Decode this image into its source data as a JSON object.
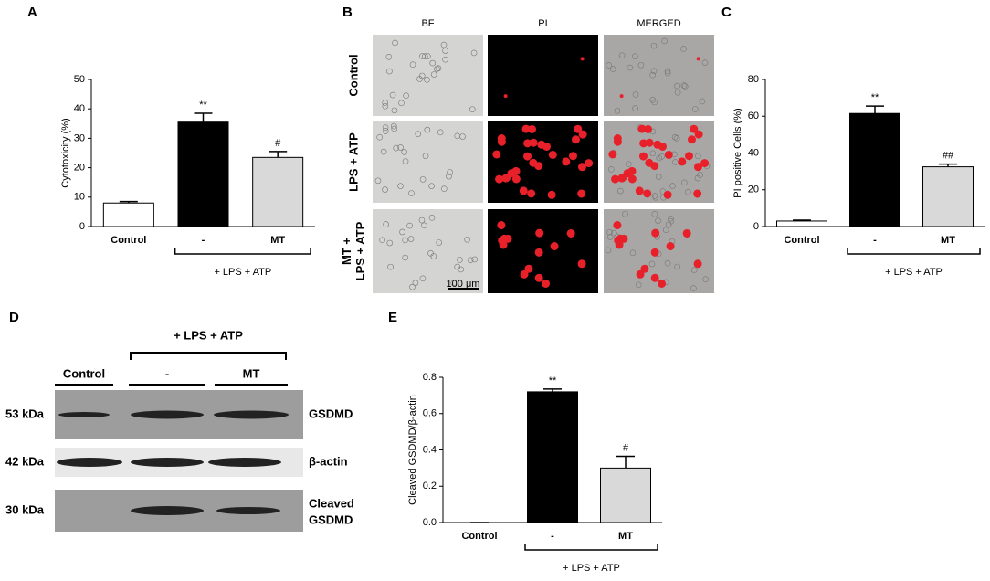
{
  "chart_data": [
    {
      "type": "bar",
      "panel": "A",
      "y_label": "Cytotoxicity (%)",
      "categories": [
        "Control",
        "-",
        "MT"
      ],
      "values": [
        8,
        35.5,
        23.5
      ],
      "errors": [
        0.5,
        3,
        2
      ],
      "colors": [
        "#ffffff",
        "#000000",
        "#d9d9d9"
      ],
      "annotations": [
        null,
        "**",
        "#"
      ],
      "group_label": "+ LPS + ATP",
      "ylim": [
        0,
        50
      ],
      "yticks": [
        0,
        10,
        20,
        30,
        40,
        50
      ]
    },
    {
      "type": "bar",
      "panel": "C",
      "y_label": "PI positive Cells (%)",
      "categories": [
        "Control",
        "-",
        "MT"
      ],
      "values": [
        3,
        61.5,
        32.5
      ],
      "errors": [
        0.5,
        4,
        1.5
      ],
      "colors": [
        "#ffffff",
        "#000000",
        "#d9d9d9"
      ],
      "annotations": [
        null,
        "**",
        "##"
      ],
      "group_label": "+ LPS + ATP",
      "ylim": [
        0,
        80
      ],
      "yticks": [
        0,
        20,
        40,
        60,
        80
      ]
    },
    {
      "type": "bar",
      "panel": "E",
      "y_label": "Cleaved GSDMD/β-actin",
      "categories": [
        "Control",
        "-",
        "MT"
      ],
      "values": [
        0,
        0.72,
        0.3
      ],
      "errors": [
        0,
        0.015,
        0.065
      ],
      "colors": [
        "#ffffff",
        "#000000",
        "#d9d9d9"
      ],
      "annotations": [
        null,
        "**",
        "#"
      ],
      "group_label": "+ LPS + ATP",
      "ylim": [
        0,
        0.8
      ],
      "yticks": [
        {
          "value": 0,
          "label": "0.0"
        },
        0.2,
        0.4,
        0.6,
        0.8
      ]
    }
  ],
  "microscopy": {
    "panel": "B",
    "columns": [
      "BF",
      "PI",
      "MERGED"
    ],
    "rows": [
      "Control",
      "LPS + ATP",
      [
        "MT +",
        "LPS + ATP"
      ]
    ],
    "scale_bar": "100 μm"
  },
  "blot": {
    "panel": "D",
    "group_label": "+ LPS + ATP",
    "lanes": [
      "Control",
      "-",
      "MT"
    ],
    "rows": [
      {
        "size": "53 kDa",
        "label": "GSDMD"
      },
      {
        "size": "42 kDa",
        "label": "β-actin"
      },
      {
        "size": "30 kDa",
        "label": [
          "Cleaved",
          "GSDMD"
        ]
      }
    ]
  }
}
